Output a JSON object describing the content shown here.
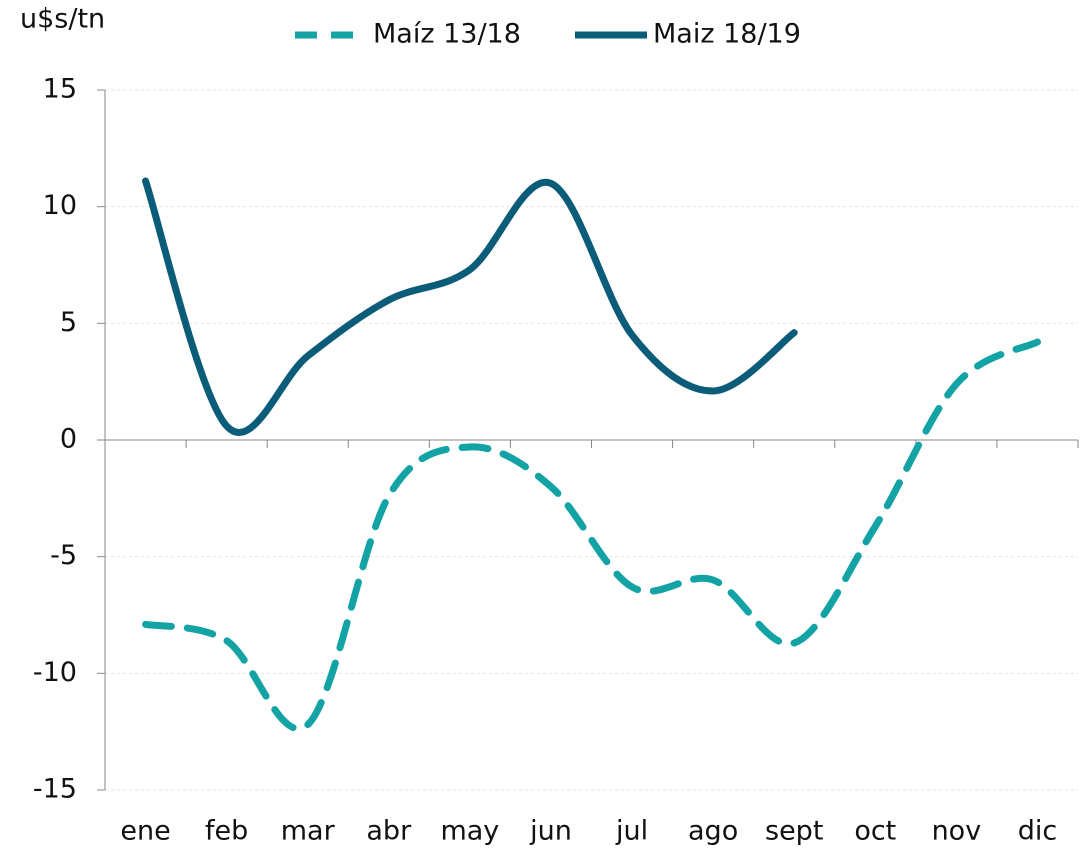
{
  "chart_data": {
    "type": "line",
    "y_axis_label": "u$s/tn",
    "categories": [
      "ene",
      "feb",
      "mar",
      "abr",
      "may",
      "jun",
      "jul",
      "ago",
      "sept",
      "oct",
      "nov",
      "dic"
    ],
    "series": [
      {
        "name": "Maíz 13/18",
        "color": "#13a3a4",
        "dashed": true,
        "values": [
          -7.9,
          -8.6,
          -12.2,
          -2.4,
          -0.3,
          -2.0,
          -6.3,
          -6.0,
          -8.7,
          -3.7,
          2.4,
          4.2
        ]
      },
      {
        "name": "Maiz 18/19",
        "color": "#0b5c78",
        "dashed": false,
        "values": [
          11.1,
          0.6,
          3.6,
          6.0,
          7.3,
          11.0,
          4.5,
          2.1,
          4.6,
          null,
          null,
          null
        ]
      }
    ],
    "ylim": [
      -15,
      15
    ],
    "yticks": [
      -15,
      -10,
      -5,
      0,
      5,
      10,
      15
    ],
    "grid": true,
    "legend": "top"
  }
}
